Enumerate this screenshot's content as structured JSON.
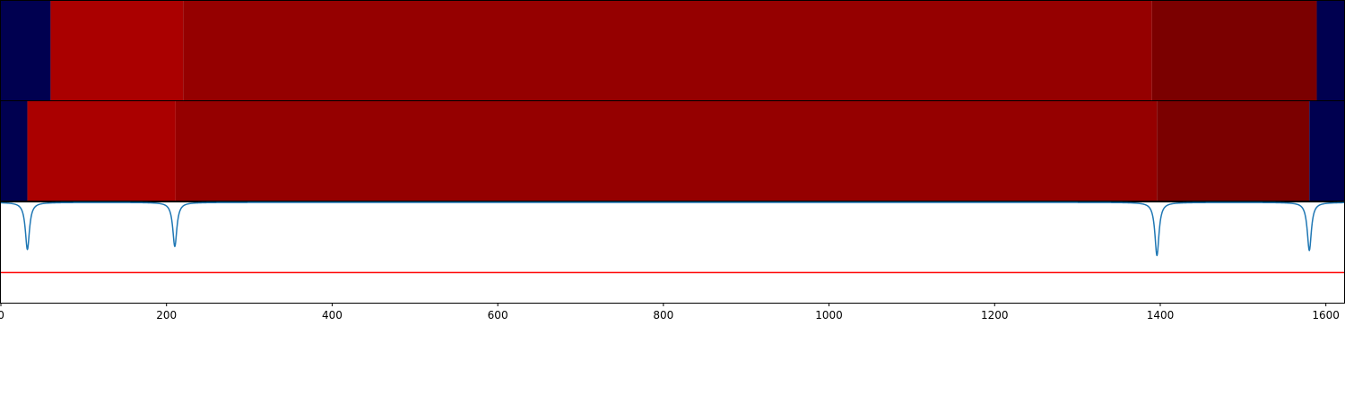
{
  "chart_data": {
    "type": "heatmap",
    "xlim": [
      0,
      1622
    ],
    "x_ticks": [
      {
        "value": 0,
        "label": "0"
      },
      {
        "value": 200,
        "label": "200"
      },
      {
        "value": 400,
        "label": "400"
      },
      {
        "value": 600,
        "label": "600"
      },
      {
        "value": 800,
        "label": "800"
      },
      {
        "value": 1000,
        "label": "1000"
      },
      {
        "value": 1200,
        "label": "1200"
      },
      {
        "value": 1400,
        "label": "1400"
      },
      {
        "value": 1600,
        "label": "1600"
      }
    ],
    "rows": [
      {
        "segments": [
          {
            "x0": 0,
            "x1": 60,
            "color": "#000050"
          },
          {
            "x0": 60,
            "x1": 220,
            "color": "#aa0000"
          },
          {
            "x0": 220,
            "x1": 1390,
            "color": "#950000"
          },
          {
            "x0": 1390,
            "x1": 1589,
            "color": "#7b0000"
          },
          {
            "x0": 1589,
            "x1": 1622,
            "color": "#000050"
          }
        ]
      },
      {
        "segments": [
          {
            "x0": 0,
            "x1": 32,
            "color": "#000050"
          },
          {
            "x0": 32,
            "x1": 211,
            "color": "#aa0000"
          },
          {
            "x0": 211,
            "x1": 1396,
            "color": "#950000"
          },
          {
            "x0": 1396,
            "x1": 1580,
            "color": "#7b0000"
          },
          {
            "x0": 1580,
            "x1": 1622,
            "color": "#000050"
          }
        ]
      }
    ],
    "signal": {
      "color": "#1f77b4",
      "baseline": 1.0,
      "dips": [
        {
          "x": 32,
          "depth": 0.47,
          "width": 3
        },
        {
          "x": 210,
          "depth": 0.44,
          "width": 3
        },
        {
          "x": 1396,
          "depth": 0.53,
          "width": 3
        },
        {
          "x": 1580,
          "depth": 0.48,
          "width": 3
        }
      ]
    },
    "threshold": {
      "value": 0.3,
      "color": "#ff0000"
    },
    "signal_ylim": [
      0,
      1
    ]
  }
}
